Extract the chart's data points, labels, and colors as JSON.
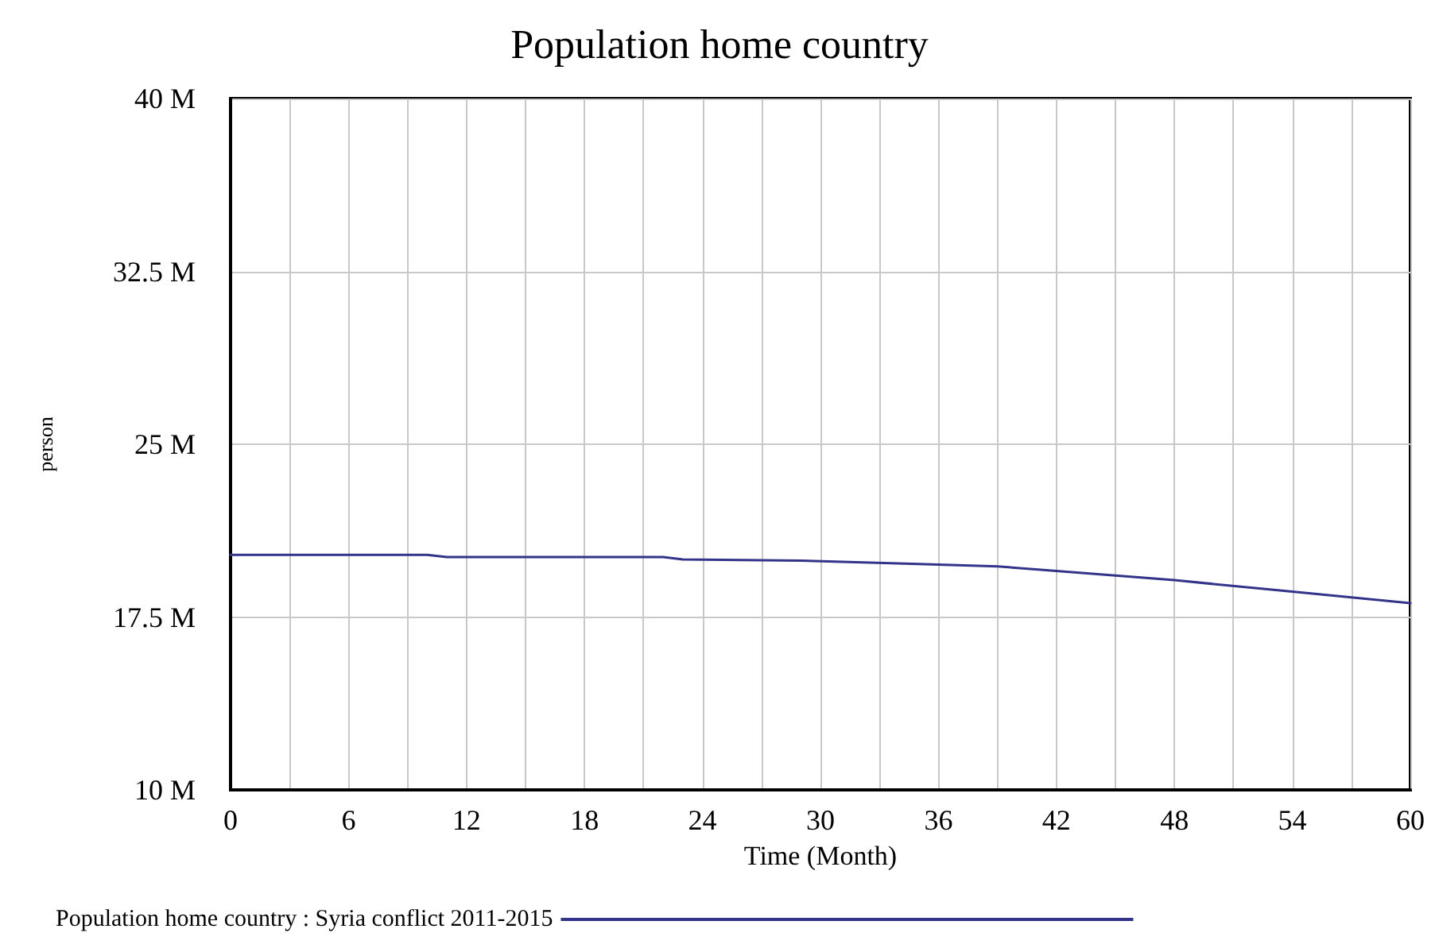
{
  "chart_data": {
    "type": "line",
    "title": "Population home country",
    "xlabel": "Time (Month)",
    "ylabel": "person",
    "x": [
      0,
      10,
      11,
      22,
      23,
      29,
      35,
      39,
      42,
      48,
      54,
      60
    ],
    "series": [
      {
        "name": "Population home country : Syria conflict 2011-2015",
        "color": "#33338a",
        "values": [
          20.2,
          20.2,
          20.1,
          20.1,
          20.0,
          19.95,
          19.8,
          19.7,
          19.5,
          19.1,
          18.6,
          18.1
        ]
      }
    ],
    "xlim": [
      0,
      60
    ],
    "xticks": [
      0,
      {
        "value": 3,
        "label": null
      },
      6,
      {
        "value": 9,
        "label": null
      },
      12,
      {
        "value": 15,
        "label": null
      },
      18,
      {
        "value": 21,
        "label": null
      },
      24,
      {
        "value": 27,
        "label": null
      },
      30,
      {
        "value": 33,
        "label": null
      },
      36,
      {
        "value": 39,
        "label": null
      },
      42,
      {
        "value": 45,
        "label": null
      },
      48,
      {
        "value": 51,
        "label": null
      },
      54,
      {
        "value": 57,
        "label": null
      },
      60
    ],
    "ylim": [
      10,
      40
    ],
    "yticks": [
      {
        "value": 10,
        "label": "10 M"
      },
      {
        "value": 17.5,
        "label": "17.5 M"
      },
      {
        "value": 25,
        "label": "25 M"
      },
      {
        "value": 32.5,
        "label": "32.5 M"
      },
      {
        "value": 40,
        "label": "40 M"
      }
    ],
    "grid": true,
    "legend": "bottom",
    "marker": "none",
    "line_style": "solid"
  }
}
